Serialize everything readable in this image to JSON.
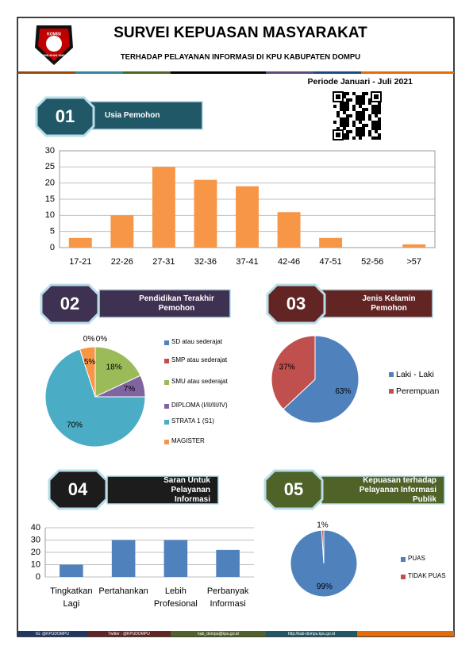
{
  "header": {
    "title": "SURVEI KEPUASAN MASYARAKAT",
    "subtitle": "TERHADAP PELAYANAN INFORMASI DI KPU KABUPATEN DOMPU",
    "period": "Periode Januari - Juli 2021",
    "logo_top": "KOMISI",
    "logo_bottom": "PEMILIHAN UMUM"
  },
  "sections": [
    {
      "number": "01",
      "label": "Usia Pemohon"
    },
    {
      "number": "02",
      "label": "Pendidikan Terakhir Pemohon"
    },
    {
      "number": "03",
      "label": "Jenis Kelamin Pemohon"
    },
    {
      "number": "04",
      "label": "Saran Untuk Pelayanan Informasi"
    },
    {
      "number": "05",
      "label": "Kepuasan terhadap Pelayanan Informasi Publik"
    }
  ],
  "chart_data": [
    {
      "type": "bar",
      "categories": [
        "17-21",
        "22-26",
        "27-31",
        "32-36",
        "37-41",
        "42-46",
        "47-51",
        "52-56",
        ">57"
      ],
      "values": [
        3,
        10,
        25,
        21,
        19,
        11,
        3,
        0,
        1
      ],
      "color": "#f79646",
      "ylim": [
        0,
        30
      ],
      "yticks": [
        0,
        5,
        10,
        15,
        20,
        25,
        30
      ],
      "grid": true
    },
    {
      "type": "pie",
      "categories": [
        "SD atau sederajat",
        "SMP atau sederajat",
        "SMU atau sederajat",
        "DIPLOMA (I/II/III/IV)",
        "STRATA 1 (S1)",
        "MAGISTER"
      ],
      "values": [
        0,
        0,
        18,
        7,
        70,
        5
      ],
      "value_labels": [
        "0%",
        "0%",
        "18%",
        "7%",
        "70%",
        "5%"
      ],
      "colors": [
        "#4f81bd",
        "#c0504d",
        "#9bbb59",
        "#8064a2",
        "#4bacc6",
        "#f79646"
      ]
    },
    {
      "type": "pie",
      "categories": [
        "Laki - Laki",
        "Perempuan"
      ],
      "values": [
        63,
        37
      ],
      "value_labels": [
        "63%",
        "37%"
      ],
      "colors": [
        "#4f81bd",
        "#c0504d"
      ]
    },
    {
      "type": "bar",
      "categories": [
        "Tingkatkan Lagi",
        "Pertahankan",
        "Lebih Profesional",
        "Perbanyak Informasi"
      ],
      "values": [
        10,
        30,
        30,
        22
      ],
      "color": "#4f81bd",
      "ylim": [
        0,
        40
      ],
      "yticks": [
        0,
        10,
        20,
        30,
        40
      ],
      "grid": true
    },
    {
      "type": "pie",
      "categories": [
        "PUAS",
        "TIDAK PUAS"
      ],
      "values": [
        99,
        1
      ],
      "value_labels": [
        "99%",
        "1%"
      ],
      "colors": [
        "#4f81bd",
        "#c0504d"
      ]
    }
  ],
  "footer": [
    "IG: @KPUDOMPU",
    "Twitter : @KPUDOMPU",
    "kab_dompu@kpu.go.id",
    "http://kab-dompu.kpu.go.id"
  ]
}
